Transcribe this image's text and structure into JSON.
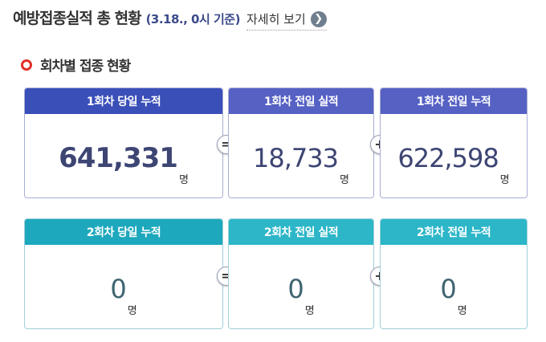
{
  "header": {
    "title": "예방접종실적 총 현황",
    "date_note": "(3.18., 0시 기준)",
    "detail_link": "자세히 보기"
  },
  "section": {
    "title": "회차별 접종 현황"
  },
  "dose1": {
    "today_label": "1회차 당일 누적",
    "today_value": "641,331",
    "prev_day_label": "1회차 전일 실적",
    "prev_day_value": "18,733",
    "prev_cum_label": "1회차 전일 누적",
    "prev_cum_value": "622,598"
  },
  "dose2": {
    "today_label": "2회차 당일 누적",
    "today_value": "0",
    "prev_day_label": "2회차 전일 실적",
    "prev_day_value": "0",
    "prev_cum_label": "2회차 전일 누적",
    "prev_cum_value": "0"
  },
  "unit": "명",
  "operators": {
    "equals": "=",
    "plus": "+"
  },
  "colors": {
    "dose1_today_head": "#3a4fb8",
    "dose1_other_head": "#5661c4",
    "dose2_today_head": "#1ea8bd",
    "dose2_other_head": "#2cb6c8",
    "accent_ring": "#e0302a"
  },
  "icons": {
    "section_marker": "ring-icon",
    "detail_arrow": "chevron-right-icon"
  }
}
